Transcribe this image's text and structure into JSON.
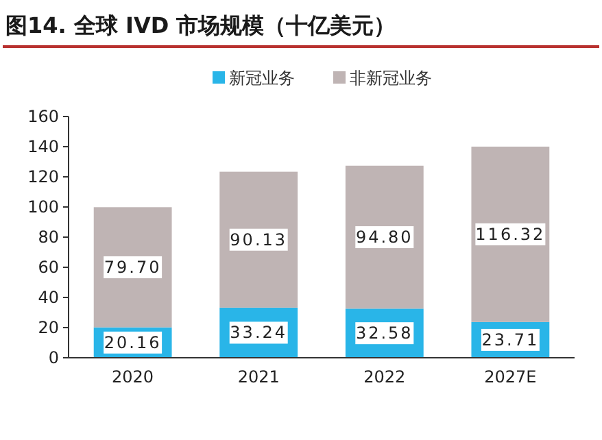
{
  "chart_data": {
    "type": "bar",
    "title": "图14. 全球 IVD 市场规模（十亿美元）",
    "categories": [
      "2020",
      "2021",
      "2022",
      "2027E"
    ],
    "stacked": true,
    "series": [
      {
        "name": "新冠业务",
        "color": "#29b5e8",
        "values": [
          20.16,
          33.24,
          32.58,
          23.71
        ],
        "value_labels": [
          "20.16",
          "33.24",
          "32.58",
          "23.71"
        ]
      },
      {
        "name": "非新冠业务",
        "color": "#bfb4b4",
        "values": [
          79.7,
          90.13,
          94.8,
          116.32
        ],
        "value_labels": [
          "79.70",
          "90.13",
          "94.80",
          "116.32"
        ]
      }
    ],
    "ylim": [
      0,
      160
    ],
    "yticks": [
      0,
      20,
      40,
      60,
      80,
      100,
      120,
      140,
      160
    ],
    "grid": false,
    "legend": "top"
  }
}
